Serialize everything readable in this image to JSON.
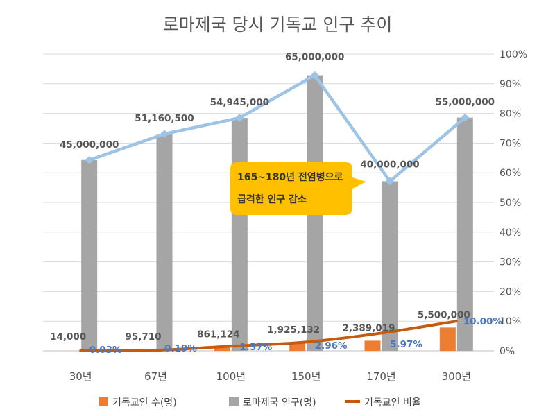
{
  "chart_data": {
    "type": "bar",
    "title": "로마제국 당시 기독교 인구 추이",
    "categories": [
      "30년",
      "67년",
      "100년",
      "150년",
      "170년",
      "300년"
    ],
    "series": [
      {
        "name": "기독교인 수(명)",
        "kind": "bar",
        "axis": "left",
        "color": "#ed7d31",
        "values": [
          14000,
          95710,
          861124,
          1925132,
          2389019,
          5500000
        ],
        "labels": [
          "14,000",
          "95,710",
          "861,124",
          "1,925,132",
          "2,389,019",
          "5,500,000"
        ]
      },
      {
        "name": "로마제국 인구(명)",
        "kind": "bar",
        "axis": "left",
        "color": "#a5a5a5",
        "values": [
          45000000,
          51160500,
          54945000,
          65000000,
          40000000,
          55000000
        ],
        "labels": [
          "45,000,000",
          "51,160,500",
          "54,945,000",
          "65,000,000",
          "40,000,000",
          "55,000,000"
        ]
      },
      {
        "name": "기독교인 비율",
        "kind": "line",
        "axis": "right",
        "color": "#c55a11",
        "values": [
          0.03,
          0.19,
          1.57,
          2.96,
          5.97,
          10.0
        ],
        "labels": [
          "0.03%",
          "0.19%",
          "1.57%",
          "2.96%",
          "5.97%",
          "10.00%"
        ]
      }
    ],
    "population_trend_line": {
      "color": "#9dc3e6",
      "values": [
        45000000,
        51160500,
        54945000,
        65000000,
        40000000,
        55000000
      ]
    },
    "left_axis": {
      "min": 0,
      "max": 70000000,
      "visible": false
    },
    "right_axis": {
      "min": 0,
      "max": 100,
      "ticks": [
        0,
        10,
        20,
        30,
        40,
        50,
        60,
        70,
        80,
        90,
        100
      ],
      "tick_labels": [
        "0%",
        "10%",
        "20%",
        "30%",
        "40%",
        "50%",
        "60%",
        "70%",
        "80%",
        "90%",
        "100%"
      ]
    },
    "grid": true,
    "legend_position": "bottom",
    "annotation": {
      "lines": [
        "165~180년 전염병으로",
        "급격한 인구 감소"
      ],
      "fill": "#ffc000",
      "points_to": "170년"
    }
  }
}
